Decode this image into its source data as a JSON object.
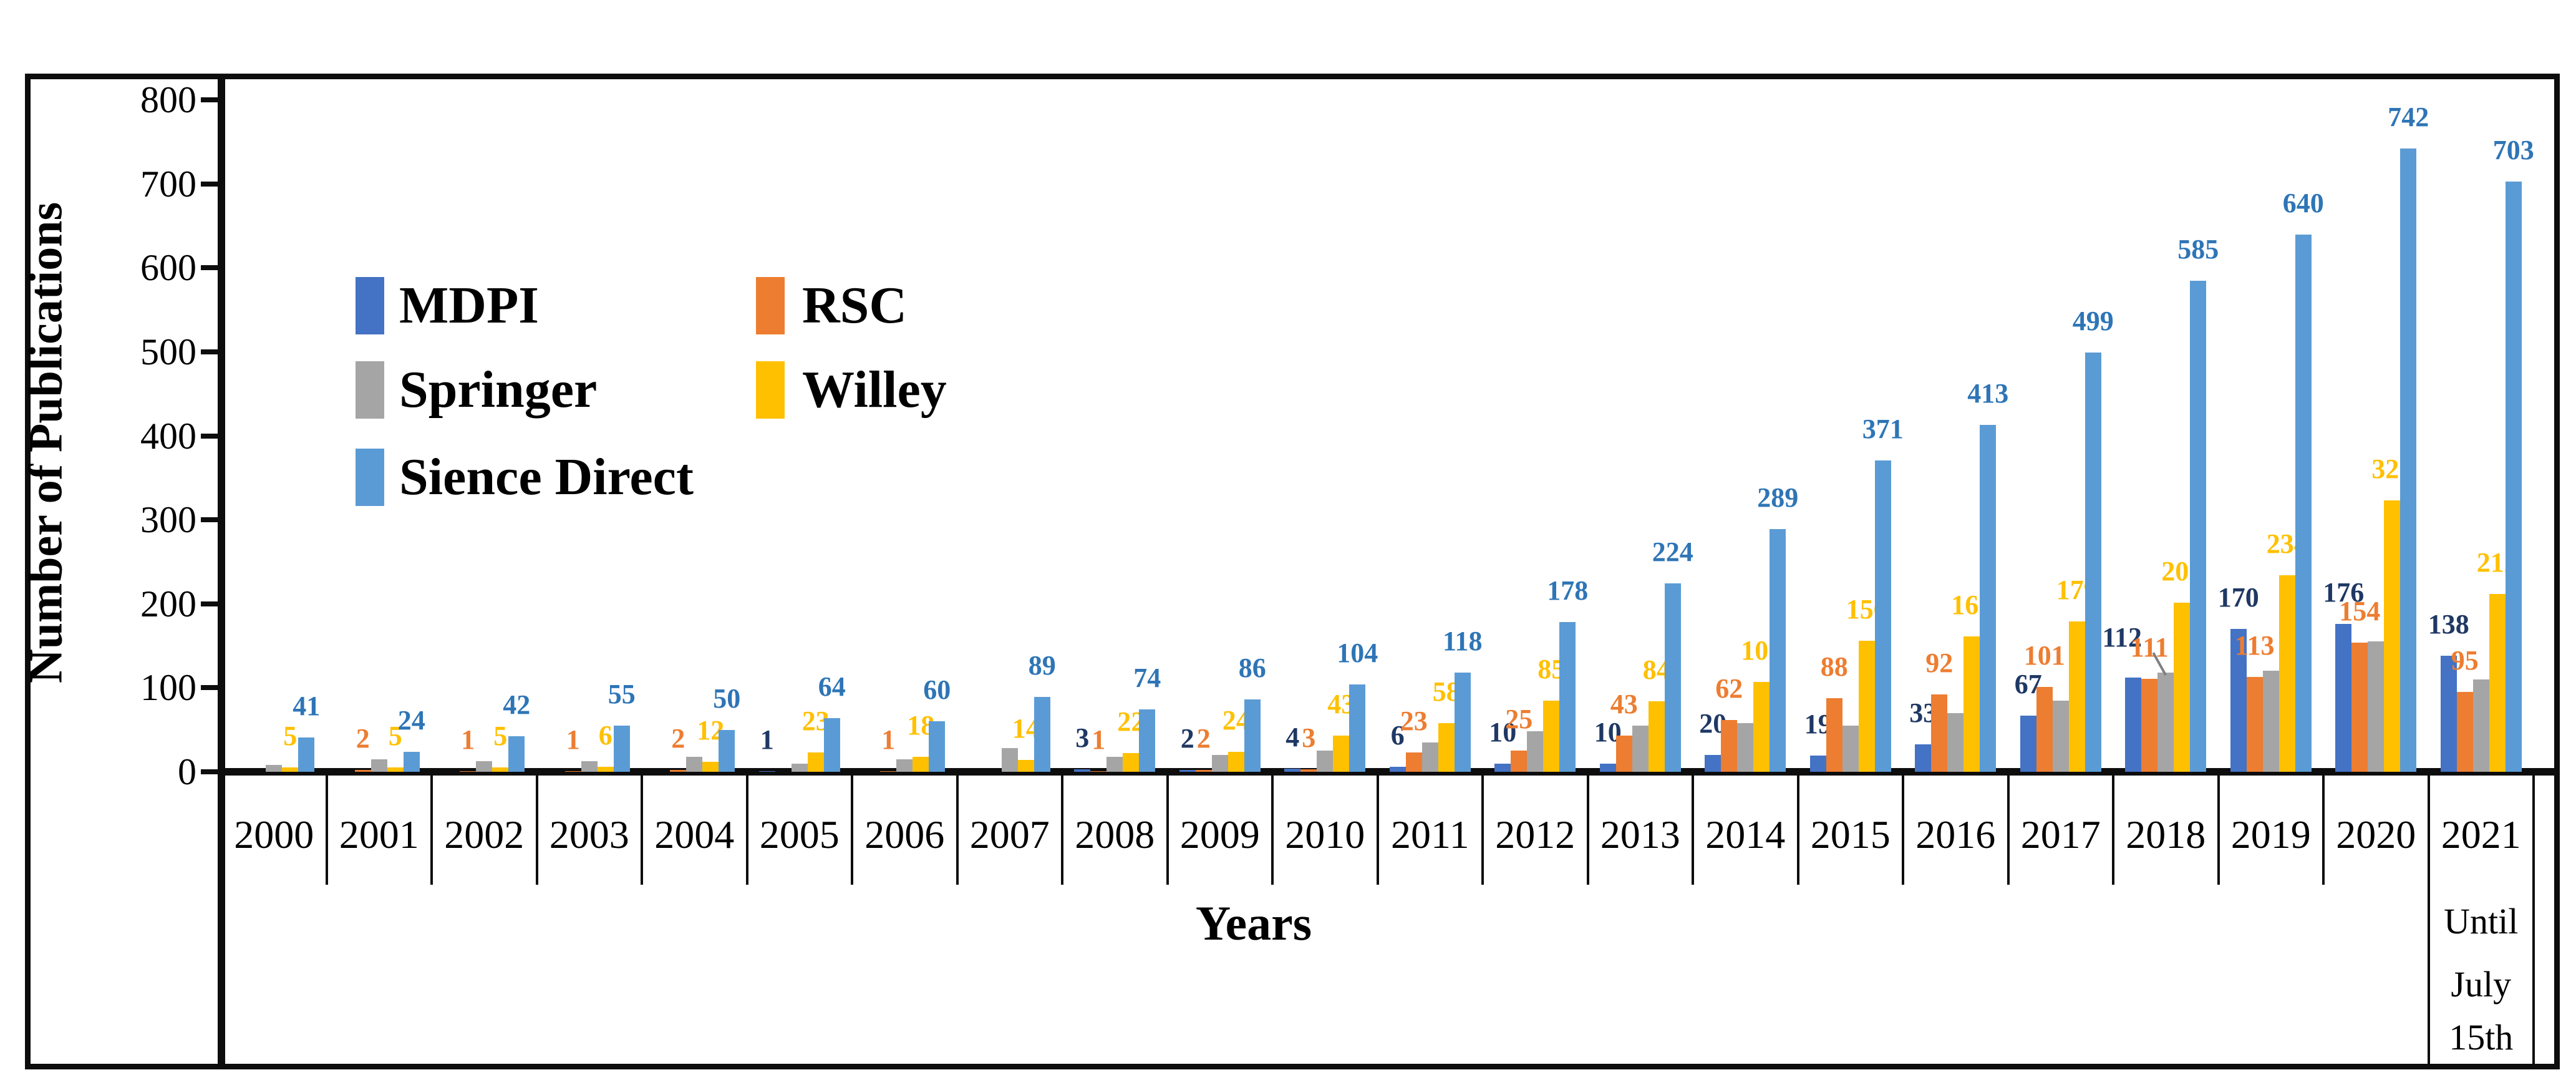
{
  "figure": {
    "background": "#ffffff",
    "frame_color": "#0d0d0d"
  },
  "chart_data": {
    "type": "bar",
    "title": "",
    "xlabel": "Years",
    "ylabel": "Number of Publications",
    "ylim": [
      0,
      800
    ],
    "y_ticks": [
      0,
      100,
      200,
      300,
      400,
      500,
      600,
      700,
      800
    ],
    "grid": false,
    "legend_position": "inside-top-left-two-columns",
    "categories": [
      "2000",
      "2001",
      "2002",
      "2003",
      "2004",
      "2005",
      "2006",
      "2007",
      "2008",
      "2009",
      "2010",
      "2011",
      "2012",
      "2013",
      "2014",
      "2015",
      "2016",
      "2017",
      "2018",
      "2019",
      "2020",
      "2021"
    ],
    "x_axis_note": {
      "category": "2021",
      "lines": [
        "Until",
        "July",
        "15th"
      ]
    },
    "label_rule": "every non-zero value is labeled above its bar except the Springer series, which is unlabeled in the source image",
    "springer_values_estimated": true,
    "series": [
      {
        "name": "MDPI",
        "color": "#4472C4",
        "label_color": "#1F3864",
        "values": [
          0,
          0,
          0,
          0,
          0,
          1,
          0,
          0,
          3,
          2,
          4,
          6,
          10,
          10,
          20,
          19,
          33,
          67,
          112,
          170,
          176,
          138
        ]
      },
      {
        "name": "RSC",
        "color": "#ED7D31",
        "label_color": "#ED7D31",
        "values": [
          0,
          2,
          1,
          1,
          2,
          0,
          1,
          0,
          1,
          2,
          3,
          23,
          25,
          43,
          62,
          88,
          92,
          101,
          111,
          113,
          154,
          95
        ]
      },
      {
        "name": "Springer",
        "color": "#A5A5A5",
        "label_color": "#A5A5A5",
        "values": [
          8,
          15,
          13,
          13,
          18,
          10,
          15,
          28,
          18,
          20,
          25,
          35,
          48,
          55,
          58,
          55,
          70,
          85,
          118,
          120,
          155,
          110
        ]
      },
      {
        "name": "Willey",
        "color": "#FFC000",
        "label_color": "#FFC000",
        "values": [
          5,
          5,
          5,
          6,
          12,
          23,
          18,
          14,
          22,
          24,
          43,
          58,
          85,
          84,
          107,
          156,
          161,
          179,
          201,
          234,
          323,
          212
        ]
      },
      {
        "name": "Sience Direct",
        "color": "#5B9BD5",
        "label_color": "#2E75B6",
        "values": [
          41,
          24,
          42,
          55,
          50,
          64,
          60,
          89,
          74,
          86,
          104,
          118,
          178,
          224,
          289,
          371,
          413,
          499,
          585,
          640,
          742,
          703
        ]
      }
    ],
    "label_offsets": {
      "MDPI-2018": {
        "dx": -18,
        "dy": -14
      }
    },
    "leader_line": {
      "year": "2018",
      "from_series": "MDPI",
      "to_series": "Springer",
      "color": "#7F7F7F"
    }
  },
  "legend": {
    "columns": [
      {
        "items": [
          {
            "label": "MDPI"
          },
          {
            "label": "Springer"
          },
          {
            "label": "Sience Direct"
          }
        ]
      },
      {
        "items": [
          {
            "label": "RSC"
          },
          {
            "label": "Willey"
          }
        ]
      }
    ]
  }
}
